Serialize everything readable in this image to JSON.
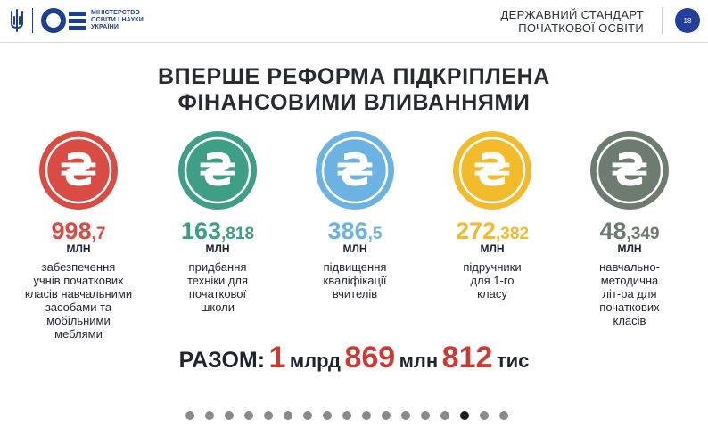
{
  "header": {
    "ministry_lines": [
      "МІНІСТЕРСТВО",
      "ОСВІТИ І НАУКИ",
      "УКРАЇНИ"
    ],
    "standard_lines": [
      "ДЕРЖАВНИЙ СТАНДАРТ",
      "ПОЧАТКОВОЇ ОСВІТИ"
    ],
    "page_number": "18"
  },
  "title_lines": [
    "ВПЕРШЕ РЕФОРМА ПІДКРІПЛЕНА",
    "ФІНАНСОВИМИ ВЛИВАННЯМИ"
  ],
  "items": [
    {
      "big": "998",
      "small": ",7",
      "unit": "МЛН",
      "desc_lines": [
        "забезпечення",
        "учнів початкових",
        "класів навчальними",
        "засобами та",
        "мобільними",
        "меблями"
      ],
      "color": "#d84c43",
      "inner": "#c23a33"
    },
    {
      "big": "163",
      "small": ",818",
      "unit": "МЛН",
      "desc_lines": [
        "придбання",
        "техніки для",
        "початкової",
        "школи"
      ],
      "color": "#3f9e86",
      "inner": "#2f8a73"
    },
    {
      "big": "386",
      "small": ",5",
      "unit": "МЛН",
      "desc_lines": [
        "підвищення",
        "кваліфікації",
        "вчителів"
      ],
      "color": "#6cb3e4",
      "inner": "#4e9fd8"
    },
    {
      "big": "272",
      "small": ",382",
      "unit": "МЛН",
      "desc_lines": [
        "підручники",
        "для 1-го",
        "класу"
      ],
      "color": "#f3bb2b",
      "inner": "#e9a919"
    },
    {
      "big": "48",
      "small": ",349",
      "unit": "МЛН",
      "desc_lines": [
        "навчально-",
        "методична",
        "літ-ра для",
        "початкових",
        "класів"
      ],
      "color": "#6e7b6f",
      "inner": "#5c685d"
    }
  ],
  "total": {
    "label": "РАЗОМ:",
    "n1": "1",
    "u1": "млрд",
    "n2": "869",
    "u2": "млн",
    "n3": "812",
    "u3": "тис"
  },
  "pagination": {
    "count": 17,
    "active_index": 14
  },
  "colors": {
    "brand_blue": "#23409a",
    "total_red": "#cc3a35"
  }
}
